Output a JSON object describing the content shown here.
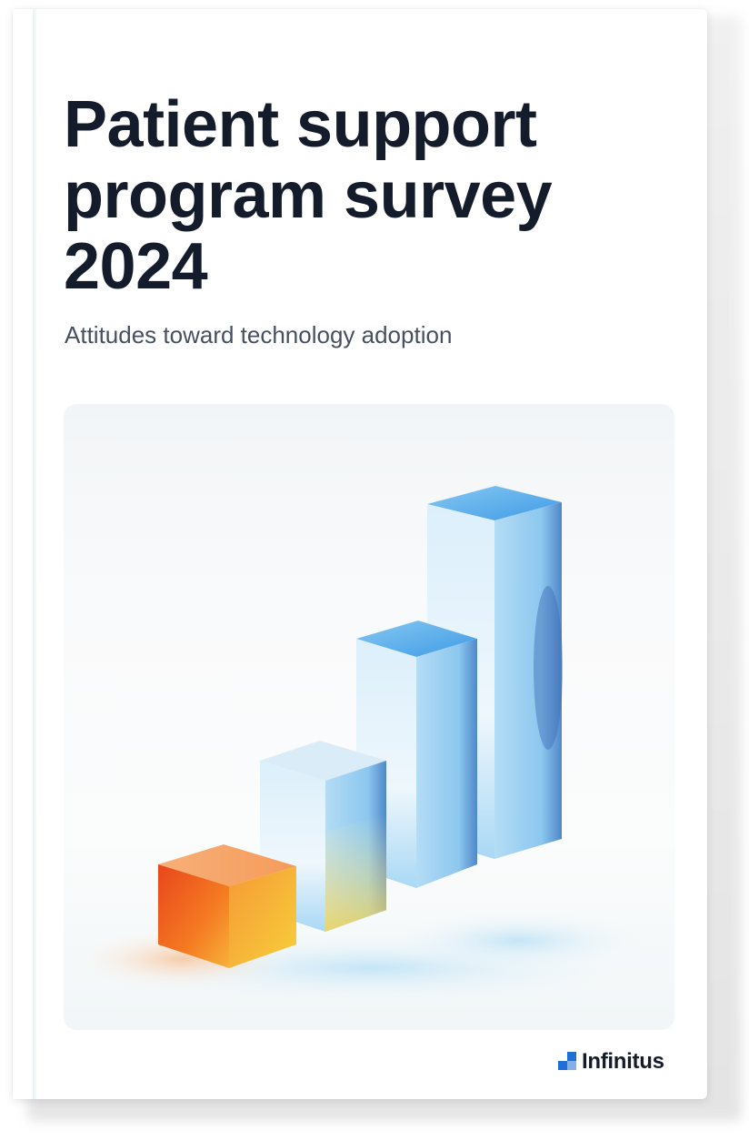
{
  "cover": {
    "title_lines": [
      "Patient support",
      "program survey",
      "2024"
    ],
    "subtitle": "Attitudes toward technology adoption",
    "brand": "Infinitus"
  },
  "illustration": {
    "subject": "bar-chart-3d",
    "bar_count": 4,
    "bar_colors": [
      "#f26b21",
      "#8fc8ef",
      "#5fb2ee",
      "#4aa4ea"
    ]
  },
  "colors": {
    "title": "#141c2b",
    "subtitle": "#475061",
    "brand_mark": "#1f6fd6"
  }
}
